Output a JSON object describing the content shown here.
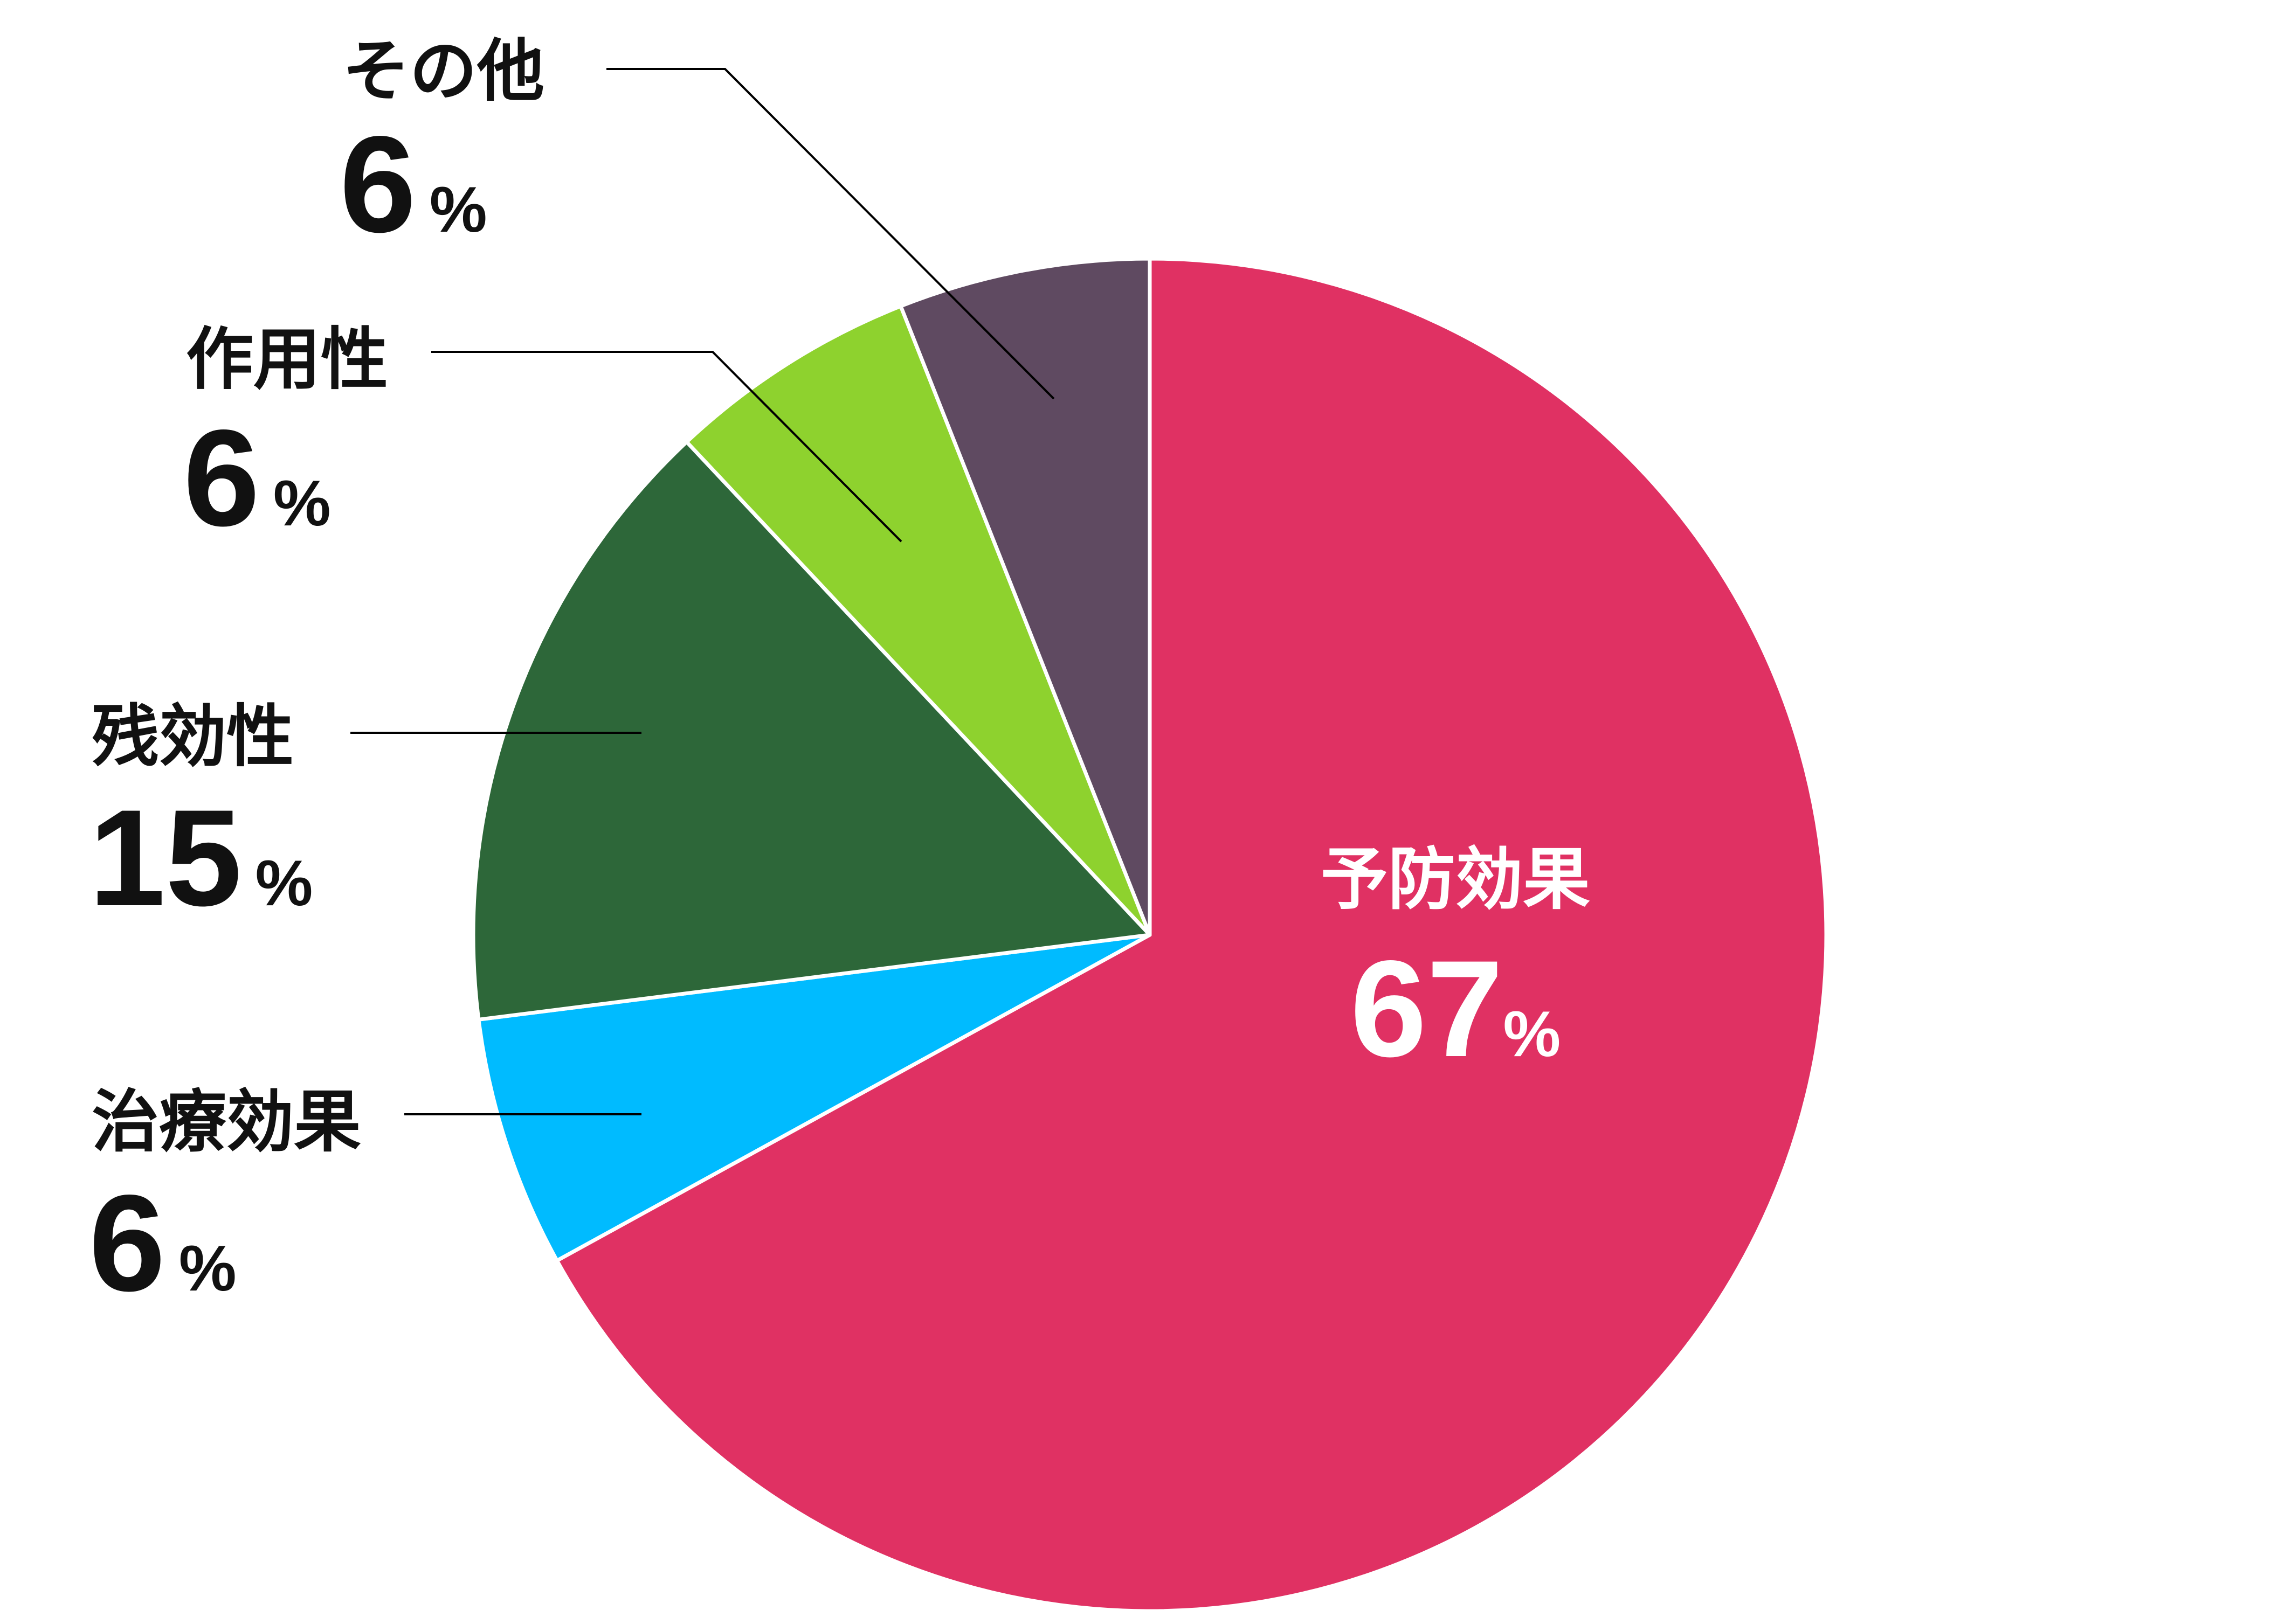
{
  "chart_data": {
    "type": "pie",
    "title": "",
    "start_angle_deg": 0,
    "direction": "clockwise",
    "slice_stroke": "#ffffff",
    "leader_color": "#000000",
    "slices": [
      {
        "label": "予防効果",
        "value": 67,
        "number": "67",
        "unit": "%",
        "color": "#e03163",
        "text_color": "#ffffff"
      },
      {
        "label": "治療効果",
        "value": 6,
        "number": "6",
        "unit": "%",
        "color": "#00bbff",
        "text_color": "#111111"
      },
      {
        "label": "残効性",
        "value": 15,
        "number": "15",
        "unit": "%",
        "color": "#2d6739",
        "text_color": "#111111"
      },
      {
        "label": "作用性",
        "value": 6,
        "number": "6",
        "unit": "%",
        "color": "#8ed22e",
        "text_color": "#111111"
      },
      {
        "label": "その他",
        "value": 6,
        "number": "6",
        "unit": "%",
        "color": "#5f4a61",
        "text_color": "#111111"
      }
    ]
  }
}
